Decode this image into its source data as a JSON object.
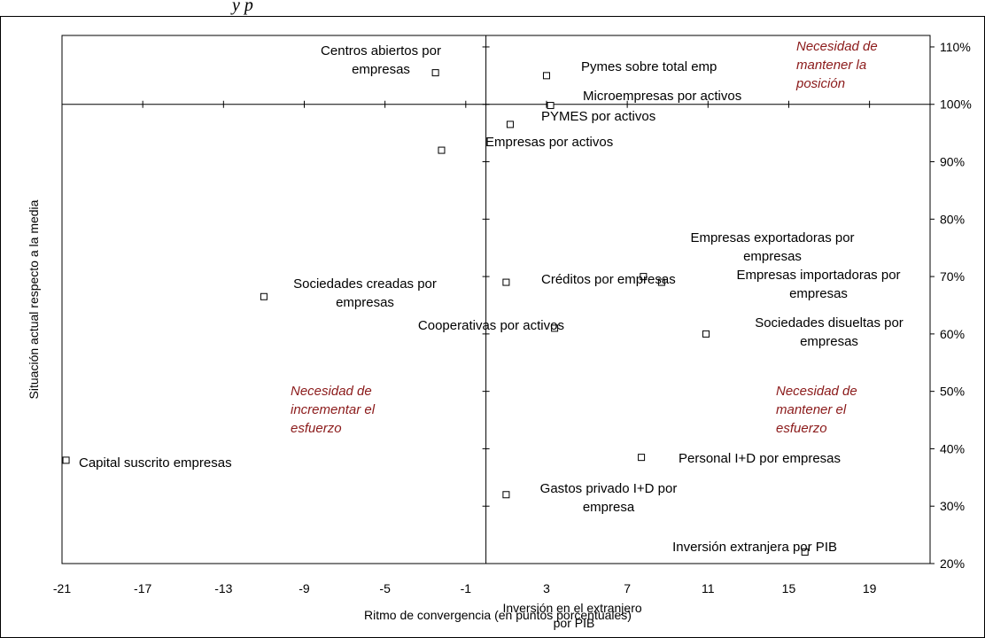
{
  "top_fragment": "y p",
  "chart_data": {
    "type": "scatter",
    "title": "",
    "xlabel": "Ritmo de convergencia (en puntos porcentuales)",
    "ylabel": "Situación actual respecto a la media",
    "xlim": [
      -21,
      22
    ],
    "ylim": [
      20,
      112
    ],
    "x_ticks": [
      -21,
      -17,
      -13,
      -9,
      -5,
      -1,
      3,
      7,
      11,
      15,
      19
    ],
    "y_ticks": [
      20,
      30,
      40,
      50,
      60,
      70,
      80,
      90,
      100,
      110
    ],
    "y_tick_labels": [
      "20%",
      "30%",
      "40%",
      "50%",
      "60%",
      "70%",
      "80%",
      "90%",
      "100%",
      "110%"
    ],
    "reference_x": 0,
    "reference_y": 100,
    "marker_color": "#000000",
    "note_color": "#8b1a1a",
    "points": [
      {
        "label": "Centros abiertos por empresas",
        "x": -2.5,
        "y": 105.5
      },
      {
        "label": "Pymes sobre total emp",
        "x": 3.0,
        "y": 105.0
      },
      {
        "label": "Microempresas por activos",
        "x": 3.2,
        "y": 99.8
      },
      {
        "label": "PYMES por activos",
        "x": 1.2,
        "y": 96.5
      },
      {
        "label": "Empresas por activos",
        "x": -2.2,
        "y": 92.0
      },
      {
        "label": "Empresas exportadoras por empresas",
        "x": 7.8,
        "y": 70.0
      },
      {
        "label": "Empresas importadoras por empresas",
        "x": 8.7,
        "y": 69.0
      },
      {
        "label": "Créditos por empresas",
        "x": 1.0,
        "y": 69.0
      },
      {
        "label": "Sociedades creadas por empresas",
        "x": -11.0,
        "y": 66.5
      },
      {
        "label": "Cooperativas por activos",
        "x": 3.4,
        "y": 61.0
      },
      {
        "label": "Sociedades disueltas por empresas",
        "x": 10.9,
        "y": 60.0
      },
      {
        "label": "Capital suscrito empresas",
        "x": -20.8,
        "y": 38.0
      },
      {
        "label": "Personal I+D por empresas",
        "x": 7.7,
        "y": 38.5
      },
      {
        "label": "Gastos privado I+D por empresa",
        "x": 1.0,
        "y": 32.0
      },
      {
        "label": "Inversión extranjera por PIB",
        "x": 15.8,
        "y": 22.0
      }
    ],
    "annotations": [
      "Necesidad de mantener la posición",
      "Necesidad de incrementar el esfuerzo",
      "Necesidad de mantener el esfuerzo"
    ],
    "overlay_text": "Inversión en el extranjero por PIB"
  }
}
